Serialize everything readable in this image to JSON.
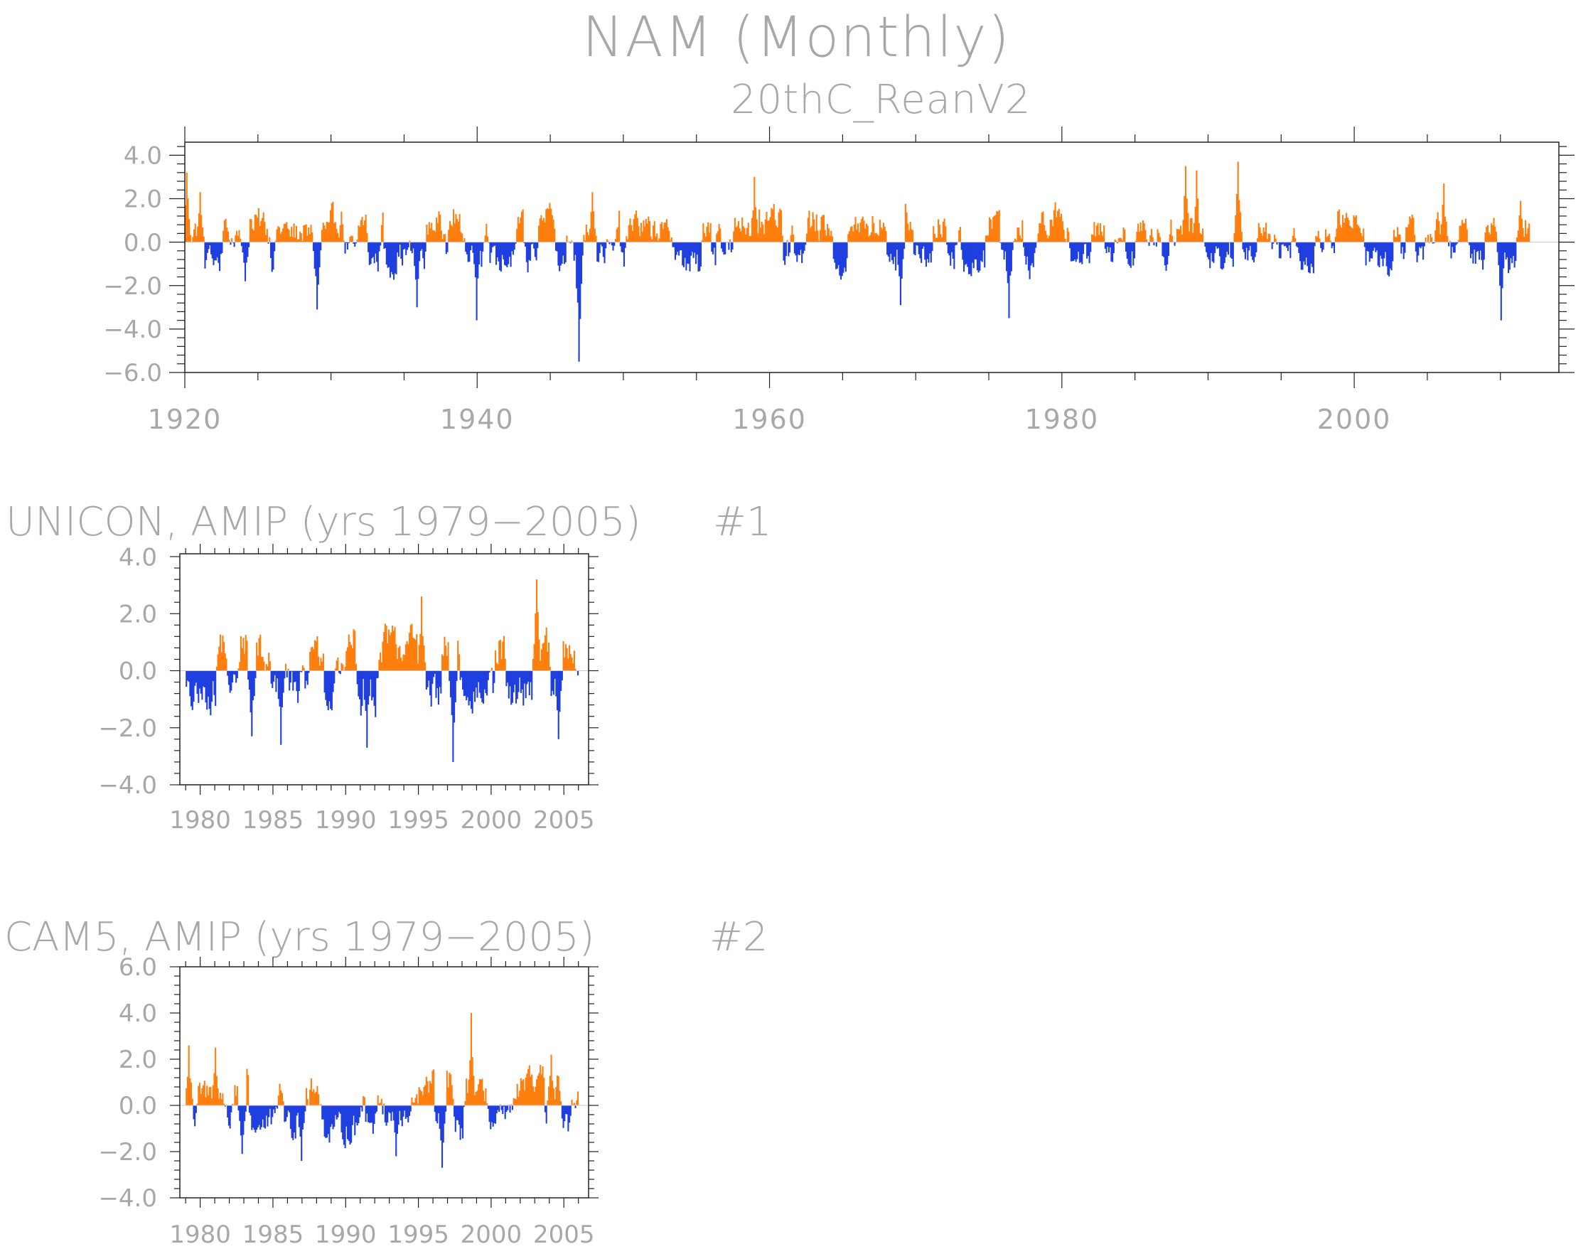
{
  "figure": {
    "title": "NAM (Monthly)"
  },
  "colors": {
    "positive": "#ff7f0e",
    "negative": "#1f3fe0",
    "axis": "#222222",
    "text": "#a8a8a8"
  },
  "chart_data": [
    {
      "type": "bar",
      "title": "20thC_ReanV2",
      "tag": "",
      "xlabel": "",
      "ylabel": "",
      "x_start": 1920,
      "x_end": 2012,
      "xlim": [
        1920,
        2014
      ],
      "ylim": [
        -6,
        4.6
      ],
      "yticks": [
        4,
        2,
        0,
        -2,
        -4,
        -6
      ],
      "ytick_labels": [
        "4.0",
        "2.0",
        "0.0",
        "−2.0",
        "−4.0",
        "−6.0"
      ],
      "xticks": [
        1920,
        1940,
        1960,
        1980,
        2000
      ],
      "xtick_labels": [
        "1920",
        "1940",
        "1960",
        "1980",
        "2000"
      ],
      "series_note": "monthly index, positive values orange, negative blue",
      "extremes": [
        {
          "x": 1920.1,
          "y": 3.2
        },
        {
          "x": 1921.0,
          "y": 2.3
        },
        {
          "x": 1924.1,
          "y": -1.8
        },
        {
          "x": 1929.0,
          "y": -3.1
        },
        {
          "x": 1935.8,
          "y": -3.0
        },
        {
          "x": 1939.9,
          "y": -3.6
        },
        {
          "x": 1946.9,
          "y": -5.5
        },
        {
          "x": 1947.8,
          "y": 2.3
        },
        {
          "x": 1958.9,
          "y": 3.0
        },
        {
          "x": 1968.9,
          "y": -2.9
        },
        {
          "x": 1976.3,
          "y": -3.5
        },
        {
          "x": 1988.4,
          "y": 3.5
        },
        {
          "x": 1989.2,
          "y": 3.3
        },
        {
          "x": 1992.0,
          "y": 3.7
        },
        {
          "x": 2006.1,
          "y": 2.7
        },
        {
          "x": 2010.0,
          "y": -3.6
        },
        {
          "x": 2011.3,
          "y": 1.9
        }
      ]
    },
    {
      "type": "bar",
      "title": "UNICON, AMIP (yrs 1979−2005)",
      "tag": "#1",
      "xlabel": "",
      "ylabel": "",
      "x_start": 1979,
      "x_end": 2006,
      "xlim": [
        1978.6,
        2006.7
      ],
      "ylim": [
        -4,
        4.1
      ],
      "yticks": [
        4,
        2,
        0,
        -2,
        -4
      ],
      "ytick_labels": [
        "4.0",
        "2.0",
        "0.0",
        "−2.0",
        "−4.0"
      ],
      "xticks": [
        1980,
        1985,
        1990,
        1995,
        2000,
        2005
      ],
      "xtick_labels": [
        "1980",
        "1985",
        "1990",
        "1995",
        "2000",
        "2005"
      ],
      "extremes": [
        {
          "x": 1983.5,
          "y": -2.3
        },
        {
          "x": 1985.5,
          "y": -2.6
        },
        {
          "x": 1991.4,
          "y": -2.7
        },
        {
          "x": 1995.2,
          "y": 2.6
        },
        {
          "x": 1997.3,
          "y": -3.2
        },
        {
          "x": 2003.1,
          "y": 3.2
        },
        {
          "x": 2004.6,
          "y": -2.4
        }
      ]
    },
    {
      "type": "bar",
      "title": "CAM5, AMIP (yrs 1979−2005)",
      "tag": "#2",
      "xlabel": "",
      "ylabel": "",
      "x_start": 1979,
      "x_end": 2006,
      "xlim": [
        1978.6,
        2006.7
      ],
      "ylim": [
        -4,
        6
      ],
      "yticks": [
        6,
        4,
        2,
        0,
        -2,
        -4
      ],
      "ytick_labels": [
        "6.0",
        "4.0",
        "2.0",
        "0.0",
        "−2.0",
        "−4.0"
      ],
      "xticks": [
        1980,
        1985,
        1990,
        1995,
        2000,
        2005
      ],
      "xtick_labels": [
        "1980",
        "1985",
        "1990",
        "1995",
        "2000",
        "2005"
      ],
      "extremes": [
        {
          "x": 1979.2,
          "y": 2.6
        },
        {
          "x": 1981.0,
          "y": 2.5
        },
        {
          "x": 1982.8,
          "y": -2.1
        },
        {
          "x": 1986.9,
          "y": -2.4
        },
        {
          "x": 1993.4,
          "y": -2.2
        },
        {
          "x": 1996.6,
          "y": -2.7
        },
        {
          "x": 1998.6,
          "y": 4.0
        },
        {
          "x": 2004.1,
          "y": 2.2
        }
      ]
    }
  ]
}
